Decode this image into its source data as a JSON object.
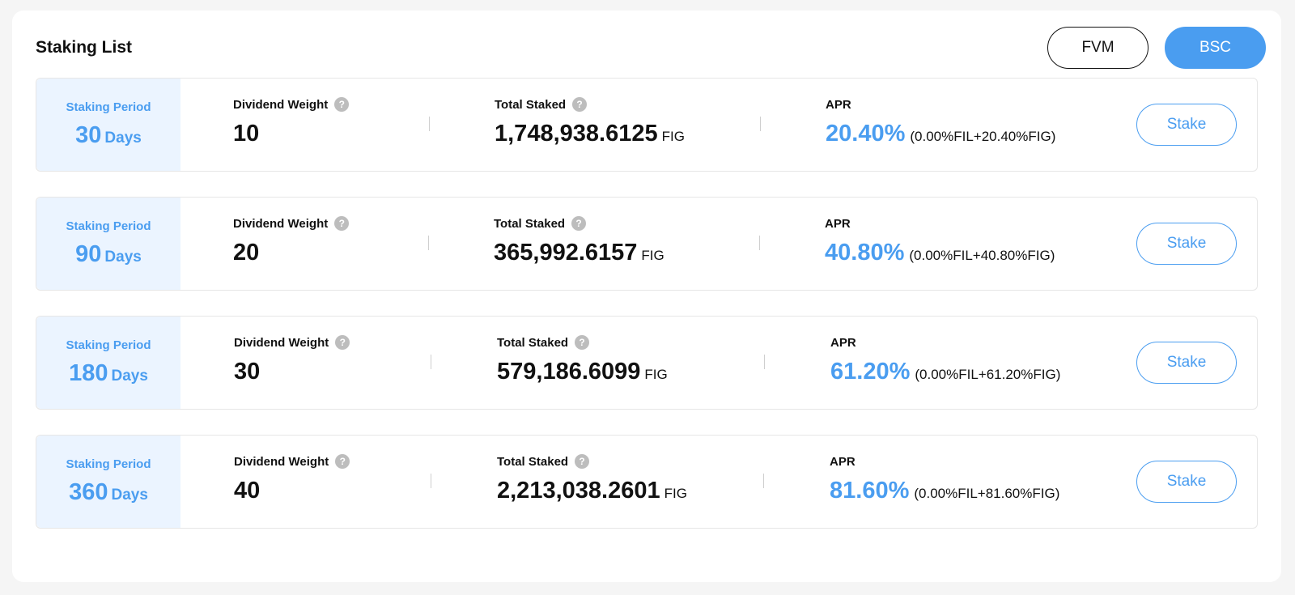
{
  "header": {
    "title": "Staking List",
    "networks": [
      "FVM",
      "BSC"
    ],
    "active_network": "BSC"
  },
  "labels": {
    "staking_period": "Staking Period",
    "dividend_weight": "Dividend Weight",
    "total_staked": "Total Staked",
    "apr": "APR",
    "stake_button": "Stake",
    "days_unit": "Days",
    "token_unit": "FIG",
    "help_glyph": "?"
  },
  "colors": {
    "accent": "#4a9df0",
    "period_bg": "#ebf4ff"
  },
  "rows": [
    {
      "period": "30",
      "weight": "10",
      "total": "1,748,938.6125",
      "apr": "20.40%",
      "apr_detail": "(0.00%FIL+20.40%FIG)"
    },
    {
      "period": "90",
      "weight": "20",
      "total": "365,992.6157",
      "apr": "40.80%",
      "apr_detail": "(0.00%FIL+40.80%FIG)"
    },
    {
      "period": "180",
      "weight": "30",
      "total": "579,186.6099",
      "apr": "61.20%",
      "apr_detail": "(0.00%FIL+61.20%FIG)"
    },
    {
      "period": "360",
      "weight": "40",
      "total": "2,213,038.2601",
      "apr": "81.60%",
      "apr_detail": "(0.00%FIL+81.60%FIG)"
    }
  ]
}
